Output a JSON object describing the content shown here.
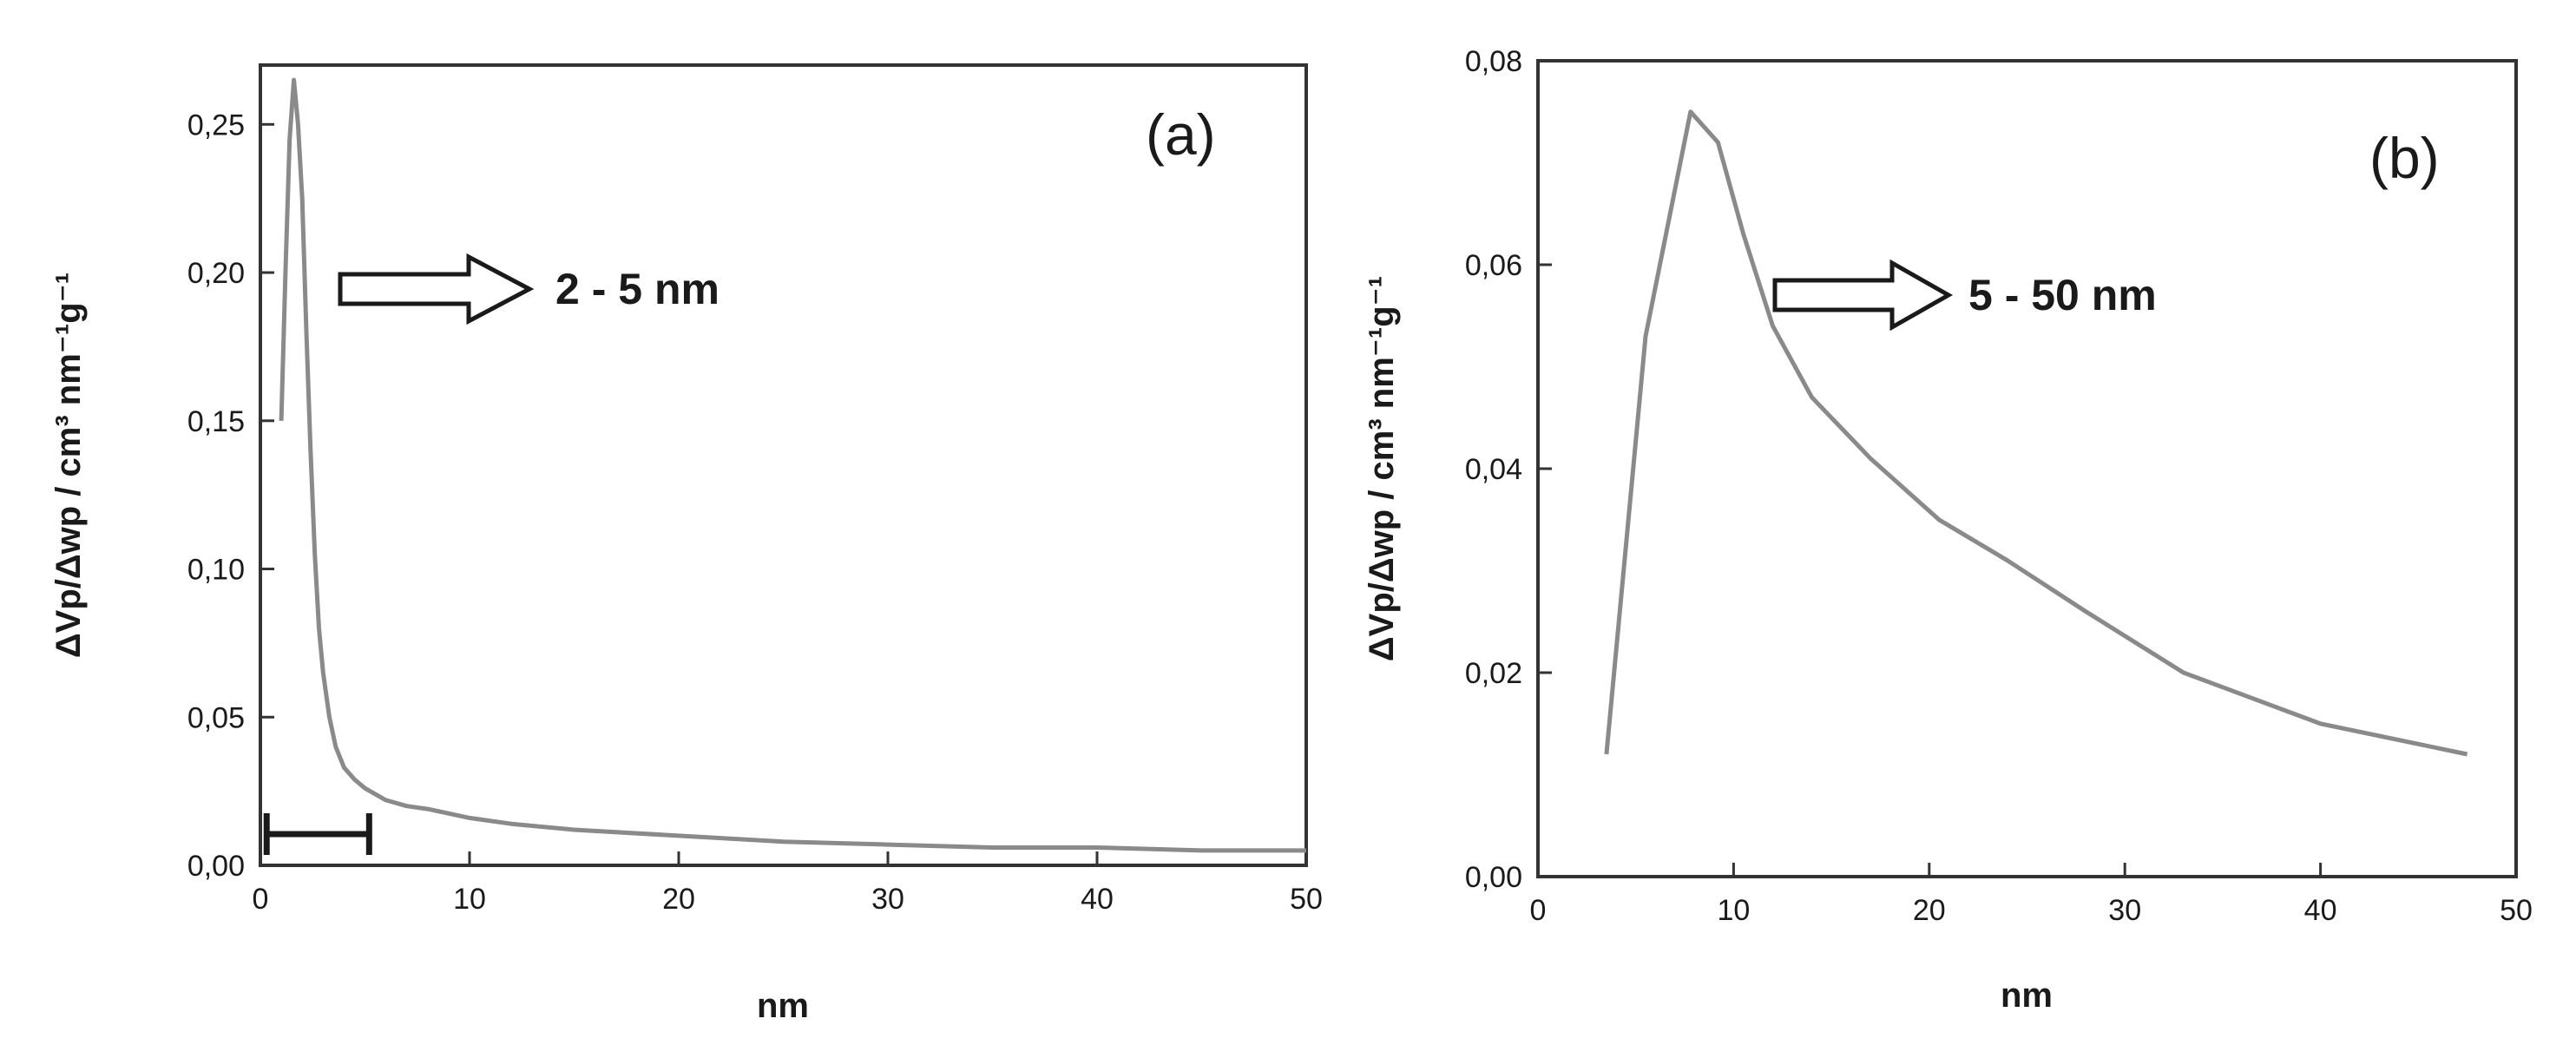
{
  "chart_data": [
    {
      "type": "line",
      "panel_label": "(a)",
      "xlabel": "nm",
      "ylabel": "ΔVp/Δwp / cm³ nm⁻¹g⁻¹",
      "xlim": [
        0,
        50
      ],
      "ylim": [
        0,
        0.27
      ],
      "x_ticks": [
        0,
        10,
        20,
        30,
        40,
        50
      ],
      "x_tick_labels": [
        "0",
        "10",
        "20",
        "30",
        "40",
        "50"
      ],
      "y_ticks": [
        0,
        0.05,
        0.1,
        0.15,
        0.2,
        0.25
      ],
      "y_tick_labels": [
        "0,00",
        "0,05",
        "0,10",
        "0,15",
        "0,20",
        "0,25"
      ],
      "grid": false,
      "series": [
        {
          "x": [
            1.0,
            1.2,
            1.4,
            1.6,
            1.8,
            2.0,
            2.2,
            2.4,
            2.6,
            2.8,
            3.0,
            3.3,
            3.6,
            4.0,
            4.5,
            5.0,
            6.0,
            7.0,
            8.0,
            10.0,
            12.0,
            15.0,
            20.0,
            25.0,
            30.0,
            35.0,
            40.0,
            45.0,
            50.0
          ],
          "y": [
            0.15,
            0.2,
            0.245,
            0.265,
            0.25,
            0.225,
            0.18,
            0.14,
            0.105,
            0.08,
            0.065,
            0.05,
            0.04,
            0.033,
            0.029,
            0.026,
            0.022,
            0.02,
            0.019,
            0.016,
            0.014,
            0.012,
            0.01,
            0.008,
            0.007,
            0.006,
            0.006,
            0.005,
            0.005
          ]
        }
      ],
      "annotation": {
        "text": "2 - 5 nm",
        "range_start": 0.3,
        "range_end": 5.2
      }
    },
    {
      "type": "line",
      "panel_label": "(b)",
      "xlabel": "nm",
      "ylabel": "ΔVp/Δwp / cm³ nm⁻¹g⁻¹",
      "xlim": [
        0,
        50
      ],
      "ylim": [
        0,
        0.08
      ],
      "x_ticks": [
        0,
        10,
        20,
        30,
        40,
        50
      ],
      "x_tick_labels": [
        "0",
        "10",
        "20",
        "30",
        "40",
        "50"
      ],
      "y_ticks": [
        0,
        0.02,
        0.04,
        0.06,
        0.08
      ],
      "y_tick_labels": [
        "0,00",
        "0,02",
        "0,04",
        "0,06",
        "0,08"
      ],
      "grid": false,
      "series": [
        {
          "x": [
            3.5,
            5.5,
            7.8,
            9.2,
            10.5,
            12.0,
            14.0,
            17.0,
            20.5,
            24.0,
            28.0,
            33.0,
            40.0,
            47.5
          ],
          "y": [
            0.012,
            0.053,
            0.075,
            0.072,
            0.063,
            0.054,
            0.047,
            0.041,
            0.035,
            0.031,
            0.026,
            0.02,
            0.015,
            0.012
          ]
        }
      ],
      "annotation": {
        "text": "5 - 50 nm"
      }
    }
  ]
}
